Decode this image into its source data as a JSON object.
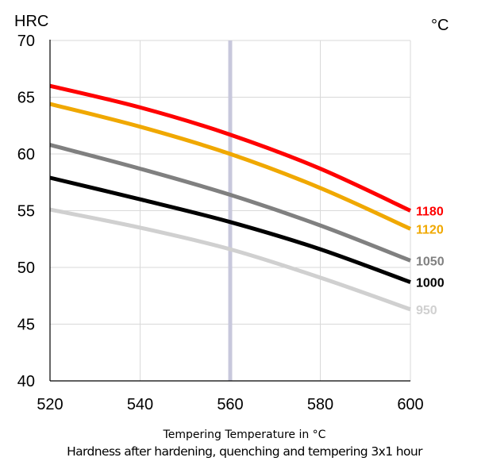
{
  "chart_data": {
    "type": "line",
    "ylabel": "HRC",
    "legend_unit": "°C",
    "xlabel": "Tempering Temperature in °C",
    "caption": "Hardness after hardening, quenching and tempering  3x1 hour",
    "xlim": [
      520,
      600
    ],
    "ylim": [
      40,
      70
    ],
    "x_ticks": [
      520,
      540,
      560,
      580,
      600
    ],
    "y_ticks": [
      40,
      45,
      50,
      55,
      60,
      65,
      70
    ],
    "grid": true,
    "highlight_x": 560,
    "highlight_color": "#c8c8dc",
    "x": [
      520,
      540,
      560,
      580,
      600
    ],
    "series": [
      {
        "name": "1180",
        "color": "#ff0000",
        "values": [
          66.0,
          64.1,
          61.7,
          58.7,
          55.0
        ]
      },
      {
        "name": "1120",
        "color": "#f0a800",
        "values": [
          64.4,
          62.4,
          60.0,
          57.0,
          53.4
        ]
      },
      {
        "name": "1050",
        "color": "#808080",
        "values": [
          60.8,
          58.7,
          56.4,
          53.7,
          50.6
        ]
      },
      {
        "name": "1000",
        "color": "#000000",
        "values": [
          57.9,
          56.0,
          54.0,
          51.6,
          48.7
        ]
      },
      {
        "name": "950",
        "color": "#d0d0d0",
        "values": [
          55.1,
          53.5,
          51.6,
          49.1,
          46.3
        ]
      }
    ]
  }
}
